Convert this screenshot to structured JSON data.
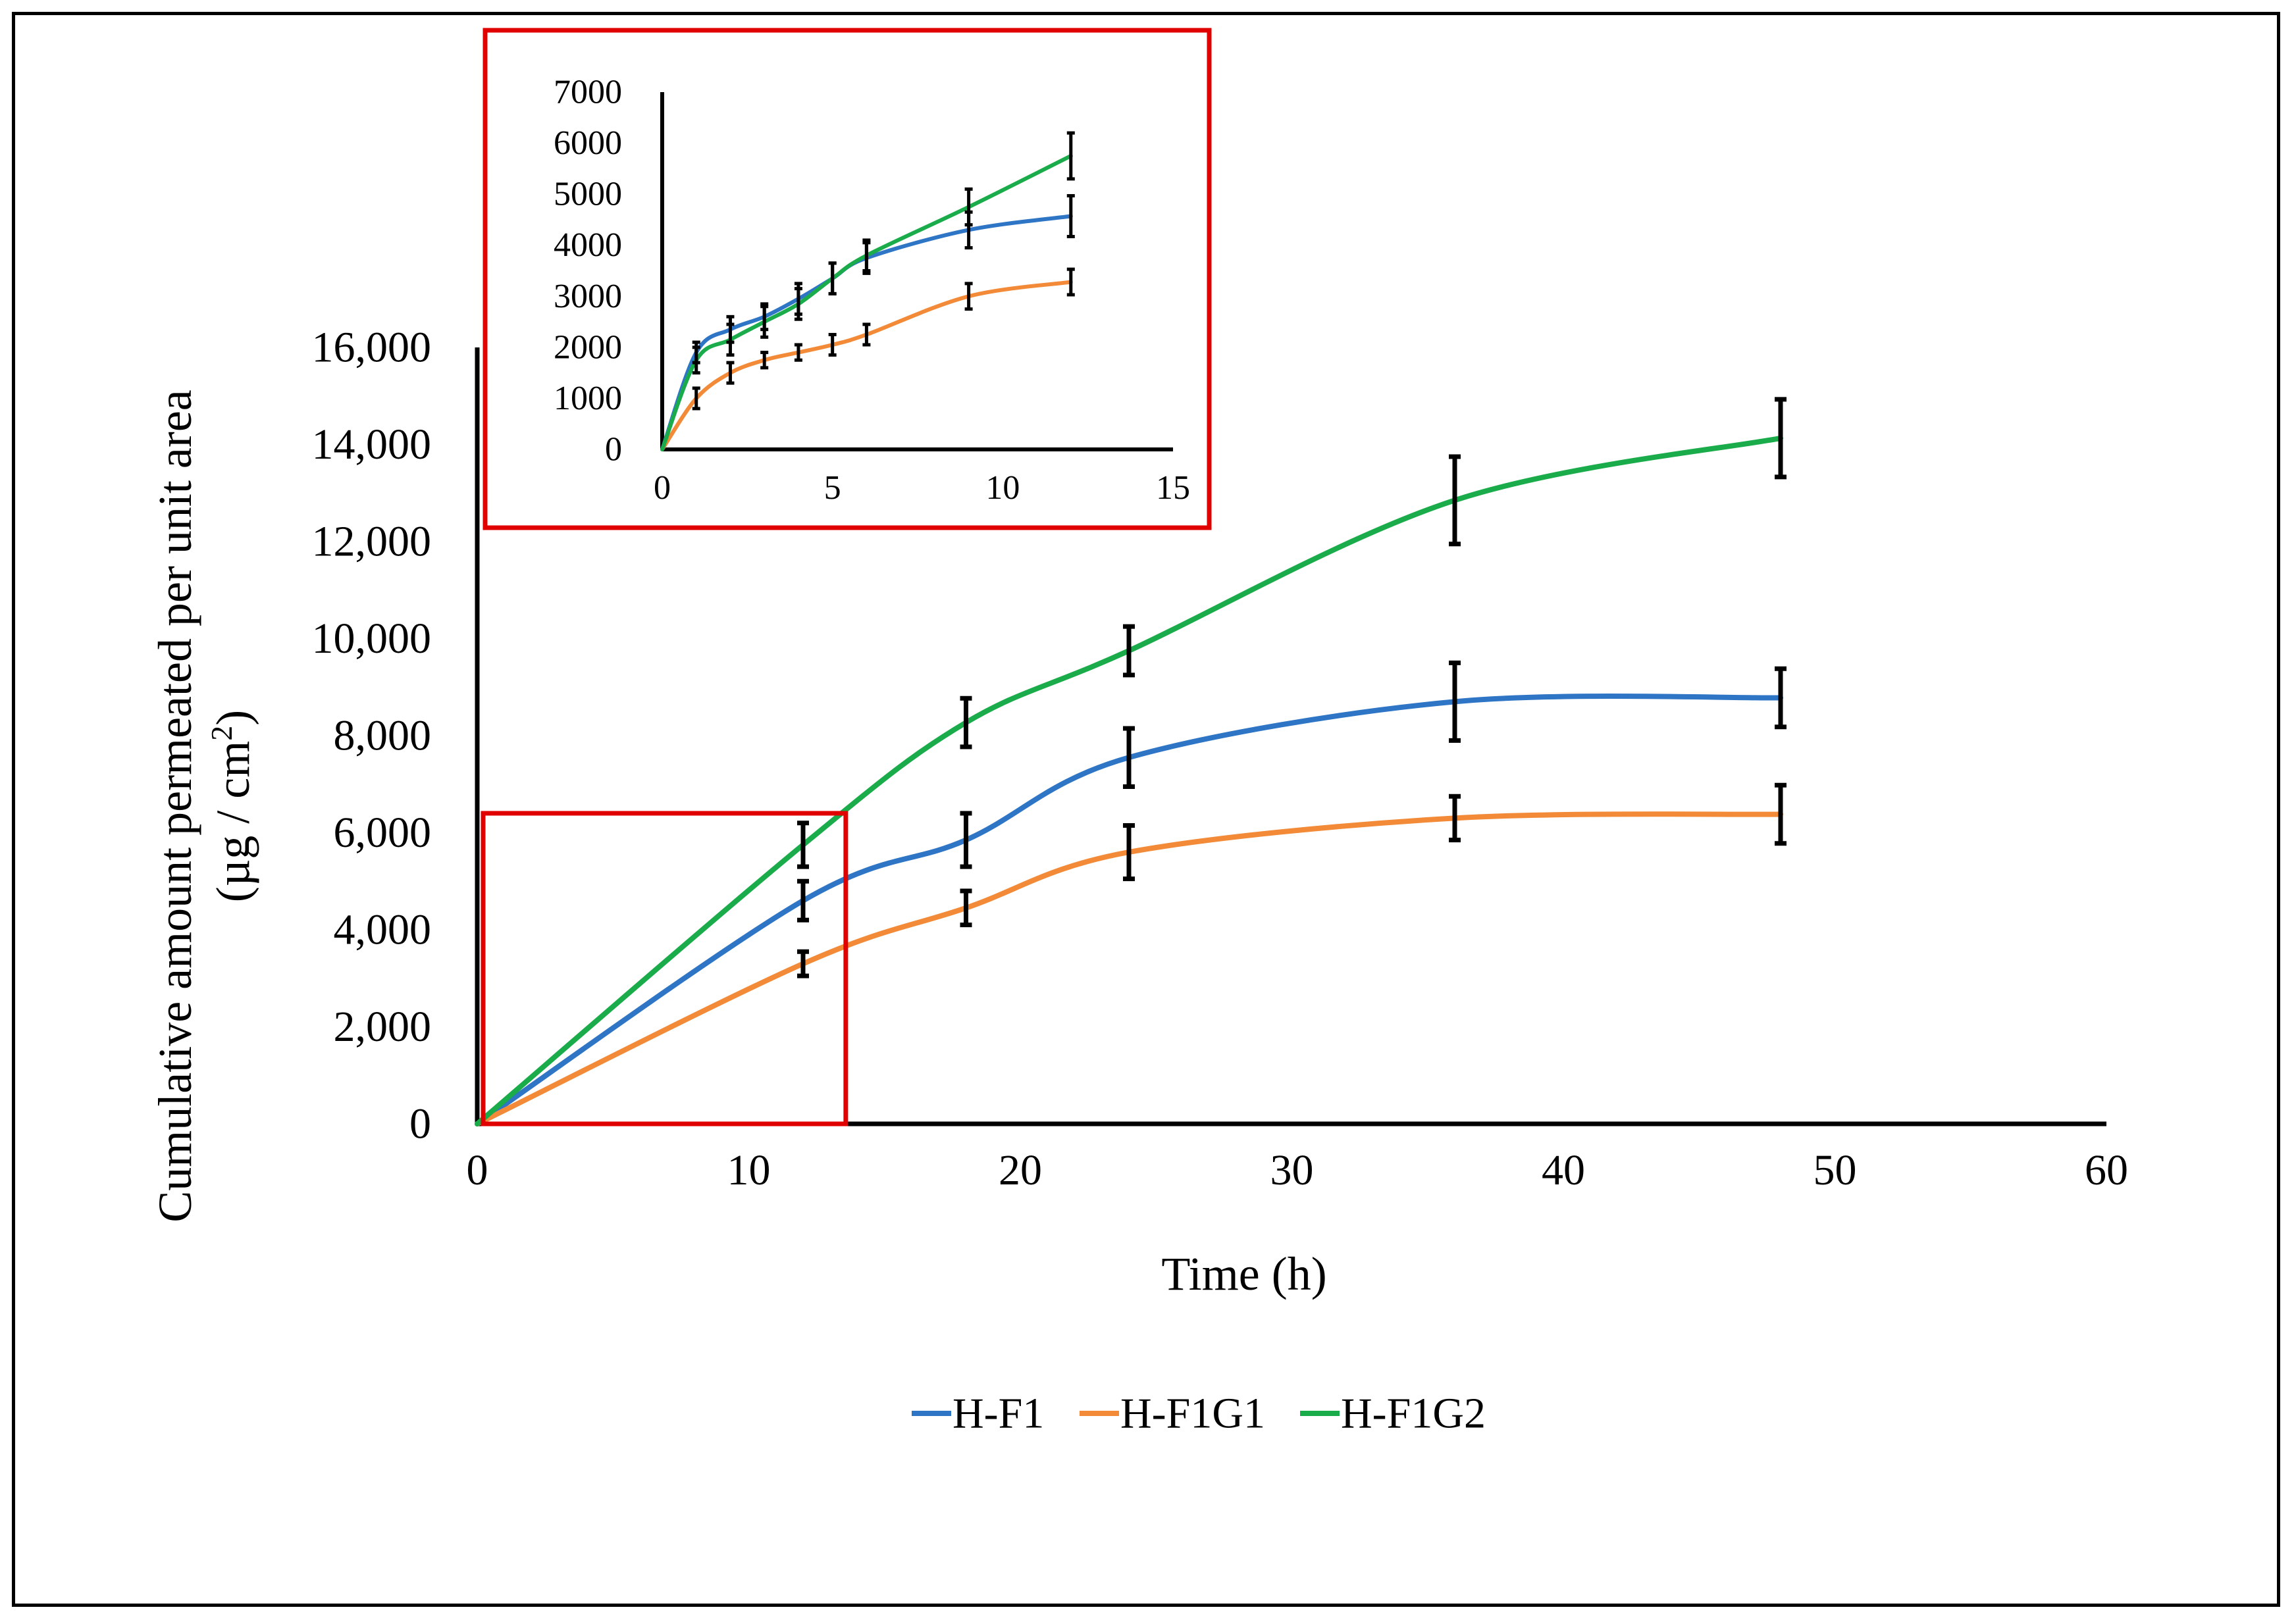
{
  "chart_data": {
    "type": "line",
    "xlabel": "Time (h)",
    "ylabel_line1": "Cumulative amount permeated per unit area",
    "ylabel_line2_prefix": "(µg / cm",
    "ylabel_line2_sup": "2",
    "ylabel_line2_suffix": ")",
    "xlim": [
      0,
      60
    ],
    "ylim": [
      0,
      16000
    ],
    "x_ticks": [
      0,
      10,
      20,
      30,
      40,
      50,
      60
    ],
    "x_tick_labels": [
      "0",
      "10",
      "20",
      "30",
      "40",
      "50",
      "60"
    ],
    "y_ticks": [
      0,
      2000,
      4000,
      6000,
      8000,
      10000,
      12000,
      14000,
      16000
    ],
    "y_tick_labels": [
      "0",
      "2,000",
      "4,000",
      "6,000",
      "8,000",
      "10,000",
      "12,000",
      "14,000",
      "16,000"
    ],
    "x": [
      0,
      12,
      18,
      24,
      36,
      48
    ],
    "series": [
      {
        "name": "H-F1",
        "color": "#2e75c5",
        "values": [
          0,
          4600,
          5850,
          7550,
          8700,
          8780
        ],
        "errors": [
          0,
          400,
          550,
          600,
          800,
          600
        ]
      },
      {
        "name": "H-F1G1",
        "color": "#f28a38",
        "values": [
          0,
          3300,
          4450,
          5600,
          6300,
          6380
        ],
        "errors": [
          0,
          250,
          350,
          550,
          450,
          600
        ]
      },
      {
        "name": "H-F1G2",
        "color": "#1aac4a",
        "values": [
          0,
          5750,
          8270,
          9750,
          12850,
          14130
        ],
        "errors": [
          0,
          450,
          500,
          500,
          900,
          800
        ]
      }
    ],
    "legend_position": "bottom-center",
    "zoom_box": {
      "x_range": [
        0,
        13.5
      ],
      "y_range": [
        0,
        6400
      ]
    },
    "inset": {
      "type": "line",
      "xlim": [
        0,
        15
      ],
      "ylim": [
        0,
        7000
      ],
      "x_ticks": [
        0,
        5,
        10,
        15
      ],
      "x_tick_labels": [
        "0",
        "5",
        "10",
        "15"
      ],
      "y_ticks": [
        0,
        1000,
        2000,
        3000,
        4000,
        5000,
        6000,
        7000
      ],
      "y_tick_labels": [
        "0",
        "1000",
        "2000",
        "3000",
        "4000",
        "5000",
        "6000",
        "7000"
      ],
      "x": [
        0,
        1,
        2,
        3,
        4,
        5,
        6,
        9,
        12
      ],
      "series": [
        {
          "name": "H-F1",
          "color": "#2e75c5",
          "values": [
            0,
            1900,
            2350,
            2600,
            2950,
            3350,
            3750,
            4300,
            4570
          ],
          "errors": [
            0,
            200,
            250,
            250,
            300,
            300,
            300,
            350,
            400
          ]
        },
        {
          "name": "H-F1G1",
          "color": "#f28a38",
          "values": [
            0,
            1000,
            1500,
            1750,
            1900,
            2050,
            2250,
            3000,
            3280
          ],
          "errors": [
            0,
            200,
            200,
            150,
            150,
            200,
            200,
            250,
            250
          ]
        },
        {
          "name": "H-F1G2",
          "color": "#1aac4a",
          "values": [
            0,
            1750,
            2150,
            2500,
            2850,
            3350,
            3800,
            4750,
            5750
          ],
          "errors": [
            0,
            250,
            300,
            300,
            300,
            300,
            300,
            350,
            450
          ]
        }
      ]
    }
  }
}
